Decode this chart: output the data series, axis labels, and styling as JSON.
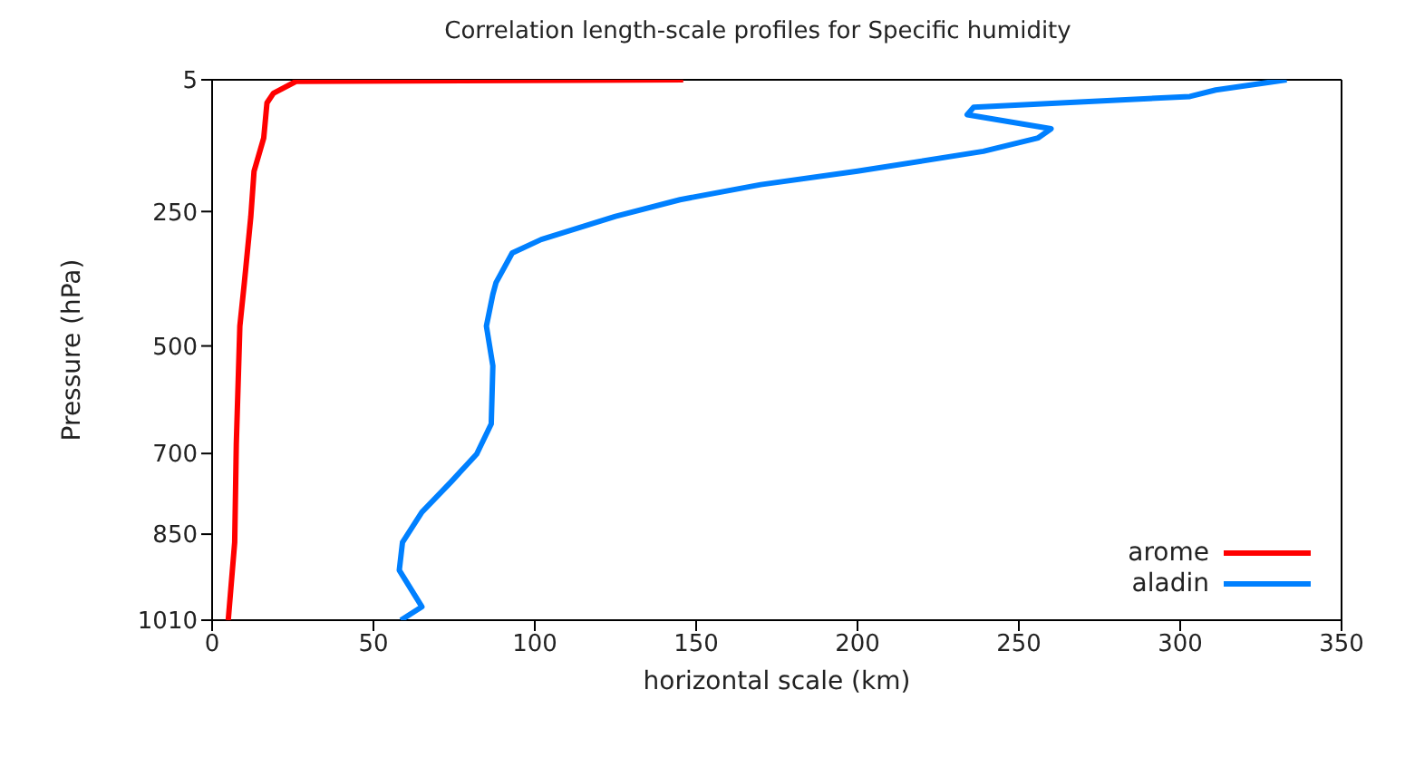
{
  "chart_data": {
    "type": "line",
    "title": "Correlation length-scale profiles for Specific humidity",
    "xlabel": "horizontal scale (km)",
    "ylabel": "Pressure (hPa)",
    "series": [
      {
        "name": "arome",
        "color": "#ff0000",
        "x": [
          146,
          115,
          26,
          19,
          17,
          16,
          13,
          12,
          10,
          8.6,
          7.5,
          7,
          5
        ],
        "values": [
          5,
          6,
          8,
          30,
          48,
          113,
          175,
          259,
          382,
          463,
          682,
          865,
          1010
        ]
      },
      {
        "name": "aladin",
        "color": "#0080ff",
        "x": [
          333,
          311,
          303,
          236,
          234,
          260,
          256,
          239,
          200,
          170,
          145,
          125,
          102,
          93,
          88,
          87,
          85,
          87,
          86.5,
          82,
          74,
          65,
          59,
          58,
          65,
          58.5
        ],
        "values": [
          5,
          24,
          36,
          56,
          70,
          96,
          113,
          138,
          175,
          200,
          228,
          259,
          302,
          327,
          382,
          404,
          463,
          537,
          645,
          701,
          753,
          809,
          865,
          917,
          985,
          1010
        ]
      }
    ],
    "xlim": [
      0,
      350
    ],
    "xticks": [
      0,
      50,
      100,
      150,
      200,
      250,
      300,
      350
    ],
    "ylim": [
      1010,
      5
    ],
    "yticks": [
      5,
      250,
      500,
      700,
      850,
      1010
    ],
    "legend": "bottom right",
    "marker": "none",
    "line_style": "solid"
  }
}
